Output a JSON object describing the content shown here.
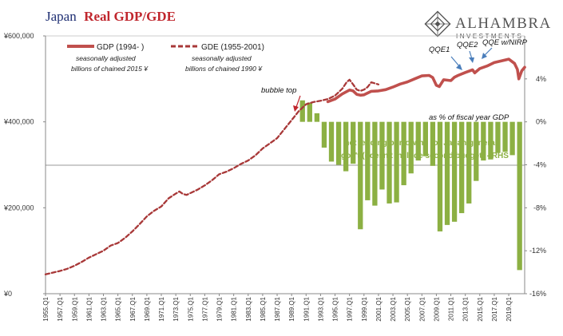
{
  "title": {
    "part1": "Japan",
    "part2": "Real GDP/GDE"
  },
  "logo": {
    "name": "ALHAMBRA",
    "sub": "INVESTMENTS"
  },
  "legend": {
    "gdp": {
      "label": "GDP (1994- )",
      "sub1": "seasonally adjusted",
      "sub2": "billions of chained 2015 ¥"
    },
    "gde": {
      "label": "GDE (1955-2001)",
      "sub1": "seasonally adjusted",
      "sub2": "billions of chained 1990 ¥"
    }
  },
  "annotations": {
    "bubble_top": "bubble top",
    "qqe1": "QQE1",
    "qqe2": "QQE2",
    "qqe_nirp": "QQE w/NIRP",
    "pct_gdp": "as % of fiscal year GDP",
    "net_lending_1": "net lending/borrowing  for Japan general",
    "net_lending_2": "gov't (doesn't include second budget) - RHS"
  },
  "colors": {
    "gdp": "#c0504d",
    "gde": "#a83838",
    "bars": "#8cb043",
    "title_blue": "#1f2f73",
    "title_red": "#c0262d"
  },
  "chart_data": {
    "type": "line",
    "left_axis": {
      "ticks": [
        "¥0",
        "¥200,000",
        "¥400,000",
        "¥600,000"
      ],
      "ylim": [
        0,
        600000
      ]
    },
    "right_axis": {
      "ticks": [
        "4%",
        "0%",
        "-4%",
        "-8%",
        "-12%",
        "-16%"
      ],
      "ylim": [
        -16,
        8
      ]
    },
    "x_tick_labels": [
      "1955.Q1",
      "1957.Q1",
      "1959.Q1",
      "1961.Q1",
      "1963.Q1",
      "1965.Q1",
      "1967.Q1",
      "1969.Q1",
      "1971.Q1",
      "1973.Q1",
      "1975.Q1",
      "1977.Q1",
      "1979.Q1",
      "1981.Q1",
      "1983.Q1",
      "1985.Q1",
      "1987.Q1",
      "1989.Q1",
      "1991.Q1",
      "1993.Q1",
      "1995.Q1",
      "1997.Q1",
      "1999.Q1",
      "2001.Q1",
      "2003.Q1",
      "2005.Q1",
      "2007.Q1",
      "2009.Q1",
      "2011.Q1",
      "2013.Q1",
      "2015.Q1",
      "2017.Q1",
      "2019.Q1"
    ],
    "xlim": [
      1955,
      2021.2
    ],
    "series": [
      {
        "name": "GDE (1955-2001)",
        "style": "dashed",
        "points": [
          [
            1955,
            45000
          ],
          [
            1956,
            49000
          ],
          [
            1957,
            53000
          ],
          [
            1958,
            58000
          ],
          [
            1959,
            65000
          ],
          [
            1960,
            74000
          ],
          [
            1961,
            84000
          ],
          [
            1962,
            92000
          ],
          [
            1963,
            100000
          ],
          [
            1964,
            112000
          ],
          [
            1965,
            118000
          ],
          [
            1966,
            130000
          ],
          [
            1967,
            145000
          ],
          [
            1968,
            162000
          ],
          [
            1969,
            180000
          ],
          [
            1970,
            193000
          ],
          [
            1971,
            203000
          ],
          [
            1972,
            222000
          ],
          [
            1973,
            233000
          ],
          [
            1973.5,
            238000
          ],
          [
            1974,
            232000
          ],
          [
            1974.5,
            230000
          ],
          [
            1975,
            234000
          ],
          [
            1976,
            242000
          ],
          [
            1977,
            252000
          ],
          [
            1978,
            264000
          ],
          [
            1979,
            278000
          ],
          [
            1980,
            284000
          ],
          [
            1981,
            292000
          ],
          [
            1982,
            302000
          ],
          [
            1983,
            310000
          ],
          [
            1984,
            322000
          ],
          [
            1985,
            338000
          ],
          [
            1986,
            350000
          ],
          [
            1987,
            362000
          ],
          [
            1988,
            383000
          ],
          [
            1989,
            404000
          ],
          [
            1990,
            425000
          ],
          [
            1991,
            441000
          ],
          [
            1992,
            446000
          ],
          [
            1993,
            449000
          ],
          [
            1994,
            453000
          ],
          [
            1995,
            461000
          ],
          [
            1996,
            477000
          ],
          [
            1996.6,
            492000
          ],
          [
            1997,
            498000
          ],
          [
            1997.5,
            487000
          ],
          [
            1998,
            475000
          ],
          [
            1998.5,
            472000
          ],
          [
            1999,
            475000
          ],
          [
            1999.5,
            481000
          ],
          [
            2000,
            492000
          ],
          [
            2001,
            487000
          ]
        ]
      },
      {
        "name": "GDP (1994- )",
        "style": "solid",
        "points": [
          [
            1994,
            447000
          ],
          [
            1995,
            453000
          ],
          [
            1996,
            465000
          ],
          [
            1997,
            474000
          ],
          [
            1997.5,
            472000
          ],
          [
            1998,
            464000
          ],
          [
            1998.5,
            462000
          ],
          [
            1999,
            463000
          ],
          [
            2000,
            471000
          ],
          [
            2001,
            472000
          ],
          [
            2002,
            475000
          ],
          [
            2003,
            481000
          ],
          [
            2004,
            488000
          ],
          [
            2005,
            493000
          ],
          [
            2006,
            500000
          ],
          [
            2007,
            507000
          ],
          [
            2008,
            508000
          ],
          [
            2008.5,
            503000
          ],
          [
            2009,
            485000
          ],
          [
            2009.4,
            482000
          ],
          [
            2010,
            498000
          ],
          [
            2011,
            496000
          ],
          [
            2011.5,
            504000
          ],
          [
            2012,
            508000
          ],
          [
            2013,
            515000
          ],
          [
            2014,
            521000
          ],
          [
            2014.3,
            514000
          ],
          [
            2015,
            524000
          ],
          [
            2016,
            530000
          ],
          [
            2017,
            538000
          ],
          [
            2018,
            542000
          ],
          [
            2019,
            546000
          ],
          [
            2019.8,
            536000
          ],
          [
            2020.2,
            522000
          ],
          [
            2020.4,
            500000
          ],
          [
            2020.8,
            519000
          ],
          [
            2021.2,
            527000
          ]
        ]
      }
    ],
    "bars": {
      "name": "net lending/borrowing  for Japan general gov't (doesn't include second budget) - RHS",
      "years": [
        1990,
        1991,
        1992,
        1993,
        1994,
        1995,
        1996,
        1997,
        1998,
        1999,
        2000,
        2001,
        2002,
        2003,
        2004,
        2005,
        2006,
        2007,
        2008,
        2009,
        2010,
        2011,
        2012,
        2013,
        2014,
        2015,
        2016,
        2017,
        2018,
        2019,
        2020
      ],
      "values": [
        2.0,
        1.8,
        0.8,
        -2.4,
        -3.7,
        -4.0,
        -4.6,
        -3.9,
        -10.0,
        -7.3,
        -7.8,
        -6.3,
        -7.6,
        -7.5,
        -5.9,
        -4.8,
        -3.6,
        -3.2,
        -4.1,
        -10.2,
        -9.6,
        -9.3,
        -8.5,
        -7.6,
        -5.5,
        -3.6,
        -3.5,
        -2.9,
        -2.8,
        -3.1,
        -13.8
      ]
    }
  }
}
